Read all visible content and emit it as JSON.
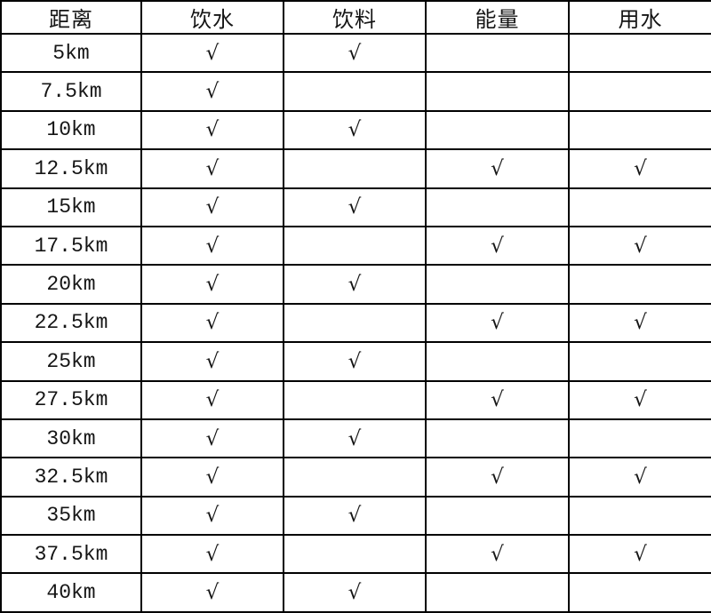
{
  "table": {
    "headers": [
      "距离",
      "饮水",
      "饮料",
      "能量",
      "用水"
    ],
    "check_mark": "√",
    "rows": [
      {
        "distance": "5km",
        "checks": [
          true,
          true,
          false,
          false
        ]
      },
      {
        "distance": "7.5km",
        "checks": [
          true,
          false,
          false,
          false
        ]
      },
      {
        "distance": "10km",
        "checks": [
          true,
          true,
          false,
          false
        ]
      },
      {
        "distance": "12.5km",
        "checks": [
          true,
          false,
          true,
          true
        ]
      },
      {
        "distance": "15km",
        "checks": [
          true,
          true,
          false,
          false
        ]
      },
      {
        "distance": "17.5km",
        "checks": [
          true,
          false,
          true,
          true
        ]
      },
      {
        "distance": "20km",
        "checks": [
          true,
          true,
          false,
          false
        ]
      },
      {
        "distance": "22.5km",
        "checks": [
          true,
          false,
          true,
          true
        ]
      },
      {
        "distance": "25km",
        "checks": [
          true,
          true,
          false,
          false
        ]
      },
      {
        "distance": "27.5km",
        "checks": [
          true,
          false,
          true,
          true
        ]
      },
      {
        "distance": "30km",
        "checks": [
          true,
          true,
          false,
          false
        ]
      },
      {
        "distance": "32.5km",
        "checks": [
          true,
          false,
          true,
          true
        ]
      },
      {
        "distance": "35km",
        "checks": [
          true,
          true,
          false,
          false
        ]
      },
      {
        "distance": "37.5km",
        "checks": [
          true,
          false,
          true,
          true
        ]
      },
      {
        "distance": "40km",
        "checks": [
          true,
          true,
          false,
          false
        ]
      }
    ]
  },
  "colors": {
    "border": "#000000",
    "background": "#ffffff",
    "text": "#151515"
  }
}
